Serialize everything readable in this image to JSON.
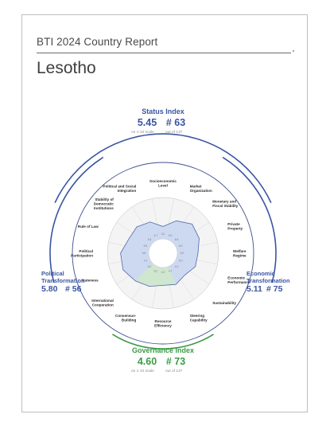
{
  "header": {
    "report_label": "BTI 2024 Country Report",
    "country": "Lesotho"
  },
  "status_index": {
    "title": "Status Index",
    "score": "5.45",
    "rank": "# 63",
    "scale_note": "on 1-10 scale",
    "rank_note": "out of 137"
  },
  "political": {
    "title_line1": "Political",
    "title_line2": "Transformation",
    "score": "5.80",
    "rank": "# 56"
  },
  "economic": {
    "title_line1": "Economic",
    "title_line2": "Transformation",
    "score": "5.11",
    "rank": "# 75"
  },
  "governance_index": {
    "title": "Governance Index",
    "score": "4.60",
    "rank": "# 73",
    "scale_note": "on 1-10 scale",
    "rank_note": "out of 137"
  },
  "colors": {
    "blue": "#3a55a3",
    "green": "#3c9a46",
    "blue_fill": "#c9d6ef",
    "green_fill": "#cfe8c9"
  },
  "chart_data": {
    "type": "radar",
    "scale": [
      0,
      10
    ],
    "criteria": [
      {
        "label_lines": [
          "Socioeconomic",
          "Level"
        ],
        "value": 3.0,
        "group": "status"
      },
      {
        "label_lines": [
          "Market",
          "Organization"
        ],
        "value": 5.0,
        "group": "status"
      },
      {
        "label_lines": [
          "Monetary and",
          "Fiscal Stability"
        ],
        "value": 6.5,
        "group": "status"
      },
      {
        "label_lines": [
          "Private",
          "Property"
        ],
        "value": 6.0,
        "group": "status"
      },
      {
        "label_lines": [
          "Welfare",
          "Regime"
        ],
        "value": 5.0,
        "group": "status"
      },
      {
        "label_lines": [
          "Economic",
          "Performance"
        ],
        "value": 5.0,
        "group": "status"
      },
      {
        "label_lines": [
          "Sustainability"
        ],
        "value": 4.0,
        "group": "status"
      },
      {
        "label_lines": [
          "Steering",
          "Capability"
        ],
        "value": 4.7,
        "group": "governance"
      },
      {
        "label_lines": [
          "Resource",
          "Efficiency"
        ],
        "value": 4.3,
        "group": "governance"
      },
      {
        "label_lines": [
          "Consensus-",
          "Building"
        ],
        "value": 5.2,
        "group": "governance"
      },
      {
        "label_lines": [
          "International",
          "Cooperation"
        ],
        "value": 6.0,
        "group": "governance"
      },
      {
        "label_lines": [
          "Stateness"
        ],
        "value": 7.0,
        "group": "status"
      },
      {
        "label_lines": [
          "Political",
          "Participation"
        ],
        "value": 6.8,
        "group": "status"
      },
      {
        "label_lines": [
          "Rule of Law"
        ],
        "value": 5.5,
        "group": "status"
      },
      {
        "label_lines": [
          "Stability of",
          "Democratic",
          "Institutions"
        ],
        "value": 5.5,
        "group": "status"
      },
      {
        "label_lines": [
          "Political and Social",
          "Integration"
        ],
        "value": 4.7,
        "group": "status"
      }
    ]
  }
}
